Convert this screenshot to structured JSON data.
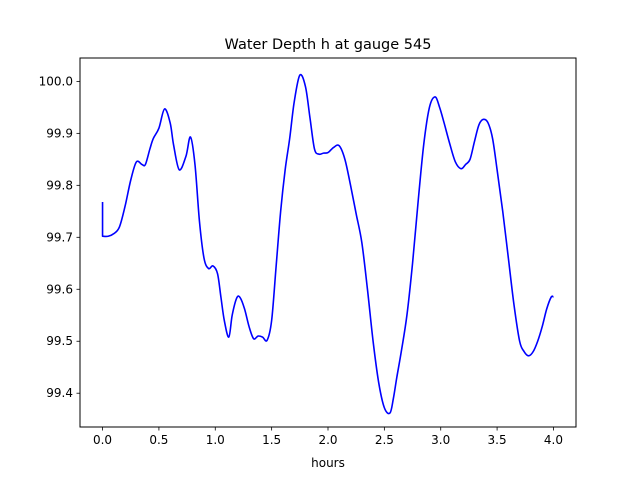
{
  "chart_data": {
    "type": "line",
    "title": "Water Depth h at gauge 545",
    "xlabel": "hours",
    "ylabel": "",
    "xlim": [
      -0.2,
      4.2
    ],
    "ylim": [
      99.335,
      100.045
    ],
    "grid": false,
    "legend": "none",
    "x_ticks": [
      0.0,
      0.5,
      1.0,
      1.5,
      2.0,
      2.5,
      3.0,
      3.5,
      4.0
    ],
    "x_tick_labels": [
      "0.0",
      "0.5",
      "1.0",
      "1.5",
      "2.0",
      "2.5",
      "3.0",
      "3.5",
      "4.0"
    ],
    "y_ticks": [
      99.4,
      99.5,
      99.6,
      99.7,
      99.8,
      99.9,
      100.0
    ],
    "y_tick_labels": [
      "99.4",
      "99.5",
      "99.6",
      "99.7",
      "99.8",
      "99.9",
      "100.0"
    ],
    "series": [
      {
        "color": "#0000ff",
        "x": [
          0.0,
          0.0,
          0.05,
          0.1,
          0.15,
          0.2,
          0.25,
          0.3,
          0.35,
          0.38,
          0.42,
          0.45,
          0.5,
          0.55,
          0.6,
          0.63,
          0.68,
          0.74,
          0.78,
          0.82,
          0.86,
          0.9,
          0.94,
          0.98,
          1.02,
          1.05,
          1.08,
          1.12,
          1.15,
          1.19,
          1.22,
          1.26,
          1.3,
          1.34,
          1.38,
          1.42,
          1.46,
          1.5,
          1.54,
          1.58,
          1.62,
          1.66,
          1.7,
          1.75,
          1.8,
          1.84,
          1.88,
          1.92,
          1.96,
          2.0,
          2.05,
          2.1,
          2.15,
          2.2,
          2.25,
          2.3,
          2.35,
          2.4,
          2.45,
          2.5,
          2.55,
          2.58,
          2.61,
          2.65,
          2.7,
          2.75,
          2.8,
          2.85,
          2.9,
          2.95,
          2.99,
          3.03,
          3.08,
          3.13,
          3.18,
          3.22,
          3.26,
          3.3,
          3.34,
          3.38,
          3.42,
          3.46,
          3.5,
          3.55,
          3.6,
          3.65,
          3.7,
          3.74,
          3.78,
          3.82,
          3.86,
          3.9,
          3.94,
          3.98,
          4.0
        ],
        "y": [
          99.768,
          99.702,
          99.702,
          99.707,
          99.72,
          99.76,
          99.81,
          99.845,
          99.84,
          99.84,
          99.87,
          99.89,
          99.91,
          99.947,
          99.92,
          99.878,
          99.83,
          99.856,
          99.893,
          99.84,
          99.73,
          99.66,
          99.64,
          99.645,
          99.63,
          99.585,
          99.54,
          99.508,
          99.55,
          99.583,
          99.584,
          99.562,
          99.528,
          99.505,
          99.51,
          99.508,
          99.502,
          99.54,
          99.645,
          99.75,
          99.83,
          99.89,
          99.96,
          100.012,
          99.99,
          99.93,
          99.87,
          99.86,
          99.862,
          99.863,
          99.873,
          99.876,
          99.85,
          99.8,
          99.745,
          99.69,
          99.6,
          99.5,
          99.42,
          99.372,
          99.362,
          99.39,
          99.43,
          99.48,
          99.55,
          99.65,
          99.77,
          99.88,
          99.95,
          99.97,
          99.95,
          99.92,
          99.88,
          99.845,
          99.832,
          99.84,
          99.85,
          99.885,
          99.917,
          99.927,
          99.92,
          99.89,
          99.83,
          99.75,
          99.66,
          99.57,
          99.5,
          99.48,
          99.472,
          99.48,
          99.5,
          99.528,
          99.562,
          99.585,
          99.585
        ]
      }
    ]
  }
}
